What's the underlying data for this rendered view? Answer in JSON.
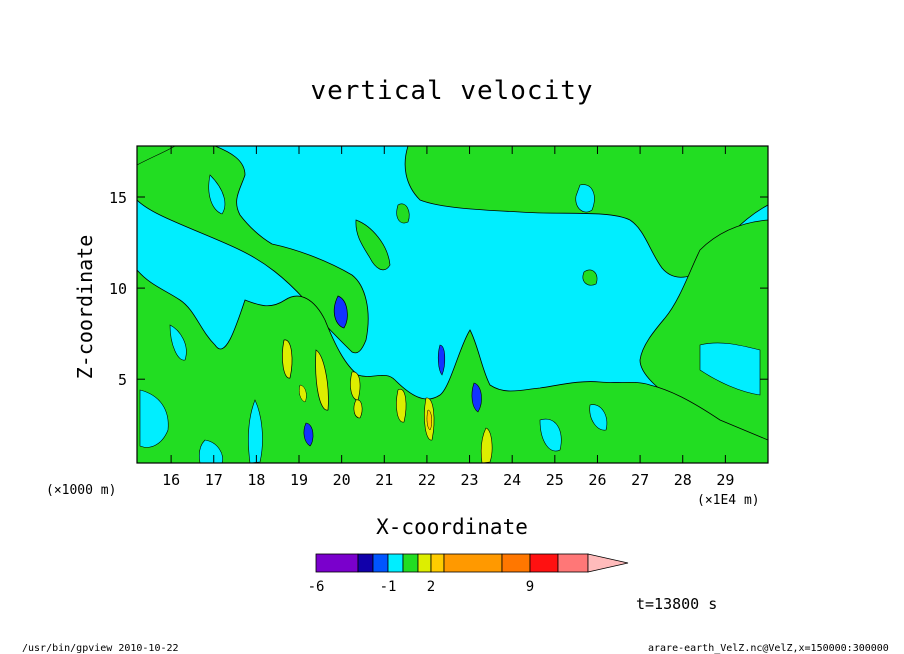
{
  "chart_data": {
    "type": "contour",
    "title": "vertical velocity",
    "xlabel": "X-coordinate",
    "ylabel": "Z-coordinate",
    "x_ticks": [
      "16",
      "17",
      "18",
      "19",
      "20",
      "21",
      "22",
      "23",
      "24",
      "25",
      "26",
      "27",
      "28",
      "29"
    ],
    "x_tick_values": [
      16,
      17,
      18,
      19,
      20,
      21,
      22,
      23,
      24,
      25,
      26,
      27,
      28,
      29
    ],
    "x_range": [
      15.2,
      30.0
    ],
    "x_unit_left": "(×1000 m)",
    "x_unit_right": "(×1E4 m)",
    "y_ticks": [
      "5",
      "10",
      "15"
    ],
    "y_tick_values": [
      5,
      10,
      15
    ],
    "y_range": [
      0.4,
      17.8
    ],
    "colorbar": {
      "labels": [
        "-6",
        "-1",
        "2",
        "9"
      ],
      "colors": [
        "#7a00cc",
        "#1100aa",
        "#0055ff",
        "#00eeff",
        "#22dd22",
        "#ddee00",
        "#ffcc00",
        "#ff9900",
        "#ff7700",
        "#ff1111",
        "#ff7777",
        "#ffbbbb"
      ]
    },
    "time_label": "t=13800 s"
  },
  "colors": {
    "background_field": "#00eeff",
    "positive_field": "#22dd22",
    "weak_positive": "#ddee00",
    "moderate_positive": "#ffcc00",
    "negative": "#0033ee"
  },
  "footer": {
    "left": "/usr/bin/gpview   2010-10-22",
    "right": "arare-earth_VelZ.nc@VelZ,x=150000:300000"
  }
}
